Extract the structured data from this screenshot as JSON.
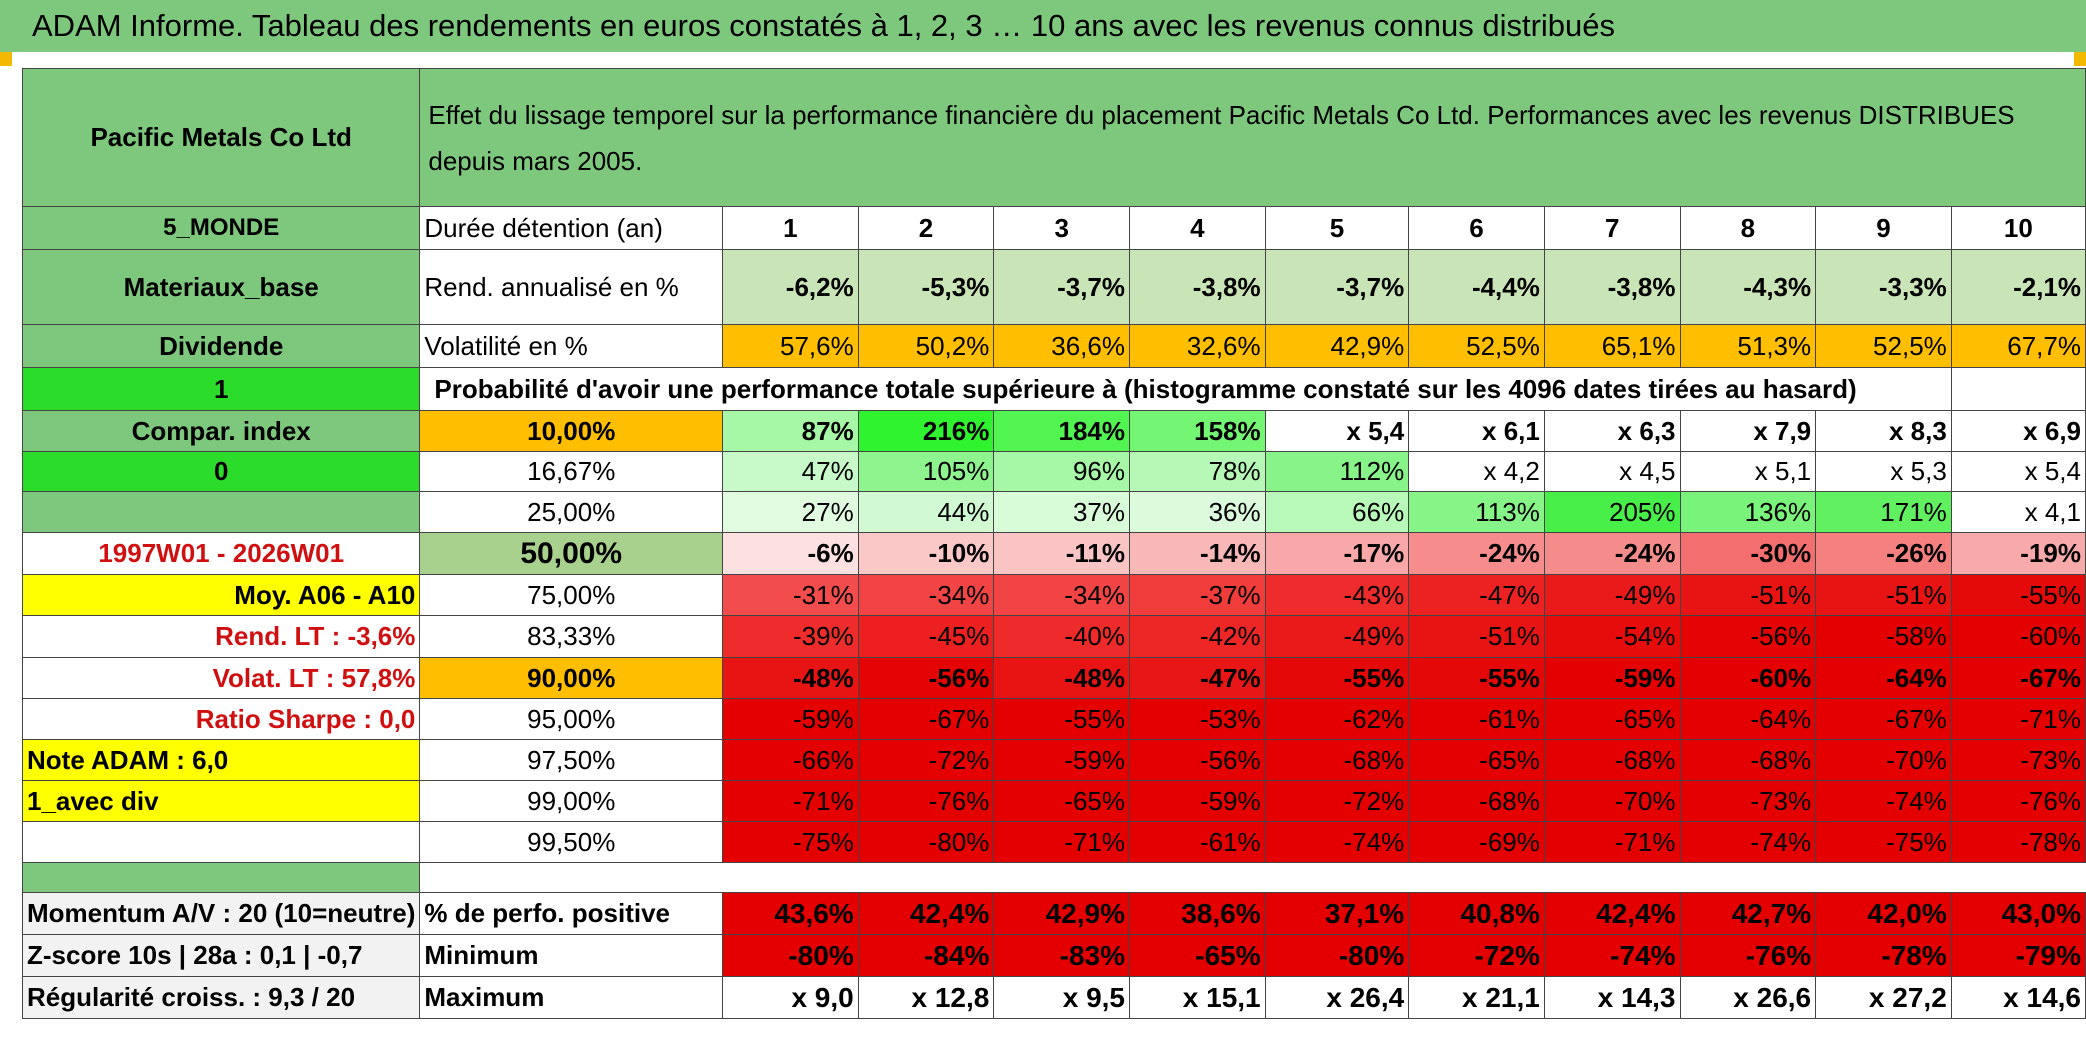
{
  "title": "ADAM Informe. Tableau des rendements en euros constatés à 1, 2, 3 … 10 ans avec les revenus connus distribués",
  "header": {
    "name": "Pacific Metals Co Ltd",
    "description": "Effet du lissage temporel sur la performance financière du placement Pacific Metals Co Ltd. Performances avec les revenus DISTRIBUES depuis mars 2005."
  },
  "side": {
    "region": "5_MONDE",
    "sector": "Materiaux_base",
    "income": "Dividende",
    "flag1": "1",
    "compar_index": "Compar. index",
    "flag0": "0",
    "period": "1997W01 - 2026W01",
    "avg": "Moy. A06 - A10",
    "rend_lt": "Rend. LT :   -3,6%",
    "volat_lt": "Volat. LT :   57,8%",
    "sharpe": "Ratio Sharpe :    0,0",
    "note": "Note ADAM : 6,0",
    "avec_div": "1_avec div",
    "momentum": "Momentum A/V : 20 (10=neutre)",
    "zscore": "Z-score 10s | 28a : 0,1 | -0,7",
    "regularite": "Régularité croiss. : 9,3 / 20"
  },
  "table": {
    "duration_label": "Durée détention (an)",
    "years": [
      "1",
      "2",
      "3",
      "4",
      "5",
      "6",
      "7",
      "8",
      "9",
      "10"
    ],
    "rend_label": "Rend. annualisé en %",
    "rend": [
      "-6,2%",
      "-5,3%",
      "-3,7%",
      "-3,8%",
      "-3,7%",
      "-4,4%",
      "-3,8%",
      "-4,3%",
      "-3,3%",
      "-2,1%"
    ],
    "vol_label": "Volatilité en %",
    "vol": [
      "57,6%",
      "50,2%",
      "36,6%",
      "32,6%",
      "42,9%",
      "52,5%",
      "65,1%",
      "51,3%",
      "52,5%",
      "67,7%"
    ],
    "prob_label": "Probabilité d'avoir une performance totale supérieure à (histogramme constaté sur les 4096 dates tirées au hasard)",
    "quantiles": [
      {
        "label": "10,00%",
        "values": [
          "87%",
          "216%",
          "184%",
          "158%",
          "x 5,4",
          "x 6,1",
          "x 6,3",
          "x 7,9",
          "x 8,3",
          "x 6,9"
        ]
      },
      {
        "label": "16,67%",
        "values": [
          "47%",
          "105%",
          "96%",
          "78%",
          "112%",
          "x 4,2",
          "x 4,5",
          "x 5,1",
          "x 5,3",
          "x 5,4"
        ]
      },
      {
        "label": "25,00%",
        "values": [
          "27%",
          "44%",
          "37%",
          "36%",
          "66%",
          "113%",
          "205%",
          "136%",
          "171%",
          "x 4,1"
        ]
      },
      {
        "label": "50,00%",
        "values": [
          "-6%",
          "-10%",
          "-11%",
          "-14%",
          "-17%",
          "-24%",
          "-24%",
          "-30%",
          "-26%",
          "-19%"
        ]
      },
      {
        "label": "75,00%",
        "values": [
          "-31%",
          "-34%",
          "-34%",
          "-37%",
          "-43%",
          "-47%",
          "-49%",
          "-51%",
          "-51%",
          "-55%"
        ]
      },
      {
        "label": "83,33%",
        "values": [
          "-39%",
          "-45%",
          "-40%",
          "-42%",
          "-49%",
          "-51%",
          "-54%",
          "-56%",
          "-58%",
          "-60%"
        ]
      },
      {
        "label": "90,00%",
        "values": [
          "-48%",
          "-56%",
          "-48%",
          "-47%",
          "-55%",
          "-55%",
          "-59%",
          "-60%",
          "-64%",
          "-67%"
        ]
      },
      {
        "label": "95,00%",
        "values": [
          "-59%",
          "-67%",
          "-55%",
          "-53%",
          "-62%",
          "-61%",
          "-65%",
          "-64%",
          "-67%",
          "-71%"
        ]
      },
      {
        "label": "97,50%",
        "values": [
          "-66%",
          "-72%",
          "-59%",
          "-56%",
          "-68%",
          "-65%",
          "-68%",
          "-68%",
          "-70%",
          "-73%"
        ]
      },
      {
        "label": "99,00%",
        "values": [
          "-71%",
          "-76%",
          "-65%",
          "-59%",
          "-72%",
          "-68%",
          "-70%",
          "-73%",
          "-74%",
          "-76%"
        ]
      },
      {
        "label": "99,50%",
        "values": [
          "-75%",
          "-80%",
          "-71%",
          "-61%",
          "-74%",
          "-69%",
          "-71%",
          "-74%",
          "-75%",
          "-78%"
        ]
      }
    ],
    "pos_label": "% de perfo. positive",
    "pos": [
      "43,6%",
      "42,4%",
      "42,9%",
      "38,6%",
      "37,1%",
      "40,8%",
      "42,4%",
      "42,7%",
      "42,0%",
      "43,0%"
    ],
    "min_label": "Minimum",
    "min": [
      "-80%",
      "-84%",
      "-83%",
      "-65%",
      "-80%",
      "-72%",
      "-74%",
      "-76%",
      "-78%",
      "-79%"
    ],
    "max_label": "Maximum",
    "max": [
      "x 9,0",
      "x 12,8",
      "x 9,5",
      "x 15,1",
      "x 26,4",
      "x 21,1",
      "x 14,3",
      "x 26,6",
      "x 27,2",
      "x 14,6"
    ]
  },
  "colors": {
    "banner": "#7ec87e",
    "label_green": "#7ec87e",
    "bright_green": "#2bdc2b",
    "yellow": "#ffff00",
    "orange": "#ffbf00",
    "pale_green": "#c9e4b6",
    "red_text": "#d01010",
    "quantile_label_bg": [
      "#ffbf00",
      "#ffffff",
      "#ffffff",
      "#a9d18e",
      "#ffffff",
      "#ffffff",
      "#ffbf00",
      "#ffffff",
      "#ffffff",
      "#ffffff",
      "#ffffff"
    ],
    "quantile_cells": [
      [
        "#a6f7a6",
        "#2ef32e",
        "#52f452",
        "#74f574",
        "#ffffff",
        "#ffffff",
        "#ffffff",
        "#ffffff",
        "#ffffff",
        "#ffffff"
      ],
      [
        "#c8f9c8",
        "#8ef48e",
        "#a6f7a6",
        "#b6f8b6",
        "#88f388",
        "#ffffff",
        "#ffffff",
        "#ffffff",
        "#ffffff",
        "#ffffff"
      ],
      [
        "#e0fbe0",
        "#d2fad2",
        "#d8fbd8",
        "#dcfbdc",
        "#b8f8b8",
        "#86f486",
        "#48ef48",
        "#7af37a",
        "#60f060",
        "#ffffff"
      ],
      [
        "#fde0e0",
        "#fbc8c8",
        "#fbc4c4",
        "#f9b8b8",
        "#f8a8a8",
        "#f68c8c",
        "#f58c8c",
        "#f36e6e",
        "#f48080",
        "#f8aaaa"
      ],
      [
        "#f24c4c",
        "#f24444",
        "#f24444",
        "#f13c3c",
        "#ee2c2c",
        "#ec2222",
        "#ea1a1a",
        "#e81414",
        "#e81414",
        "#e50a0a"
      ],
      [
        "#ee2c2c",
        "#ec2020",
        "#ee2a2a",
        "#ed2626",
        "#ea1a1a",
        "#e81414",
        "#e60c0c",
        "#e40404",
        "#e40000",
        "#e40000"
      ],
      [
        "#e81414",
        "#e40404",
        "#e81414",
        "#e81616",
        "#e50808",
        "#e50808",
        "#e40000",
        "#e40000",
        "#e40000",
        "#e40000"
      ],
      [
        "#e40000",
        "#e40000",
        "#e40000",
        "#e40000",
        "#e40000",
        "#e40000",
        "#e40000",
        "#e40000",
        "#e40000",
        "#e40000"
      ],
      [
        "#e40000",
        "#e40000",
        "#e40000",
        "#e40000",
        "#e40000",
        "#e40000",
        "#e40000",
        "#e40000",
        "#e40000",
        "#e40000"
      ],
      [
        "#e40000",
        "#e40000",
        "#e40000",
        "#e40000",
        "#e40000",
        "#e40000",
        "#e40000",
        "#e40000",
        "#e40000",
        "#e40000"
      ],
      [
        "#e40000",
        "#e40000",
        "#e40000",
        "#e40000",
        "#e40000",
        "#e40000",
        "#e40000",
        "#e40000",
        "#e40000",
        "#e40000"
      ]
    ],
    "quantile_bold": [
      true,
      false,
      false,
      true,
      false,
      false,
      true,
      false,
      false,
      false,
      false
    ],
    "pos_min_bg": "#e40000"
  }
}
